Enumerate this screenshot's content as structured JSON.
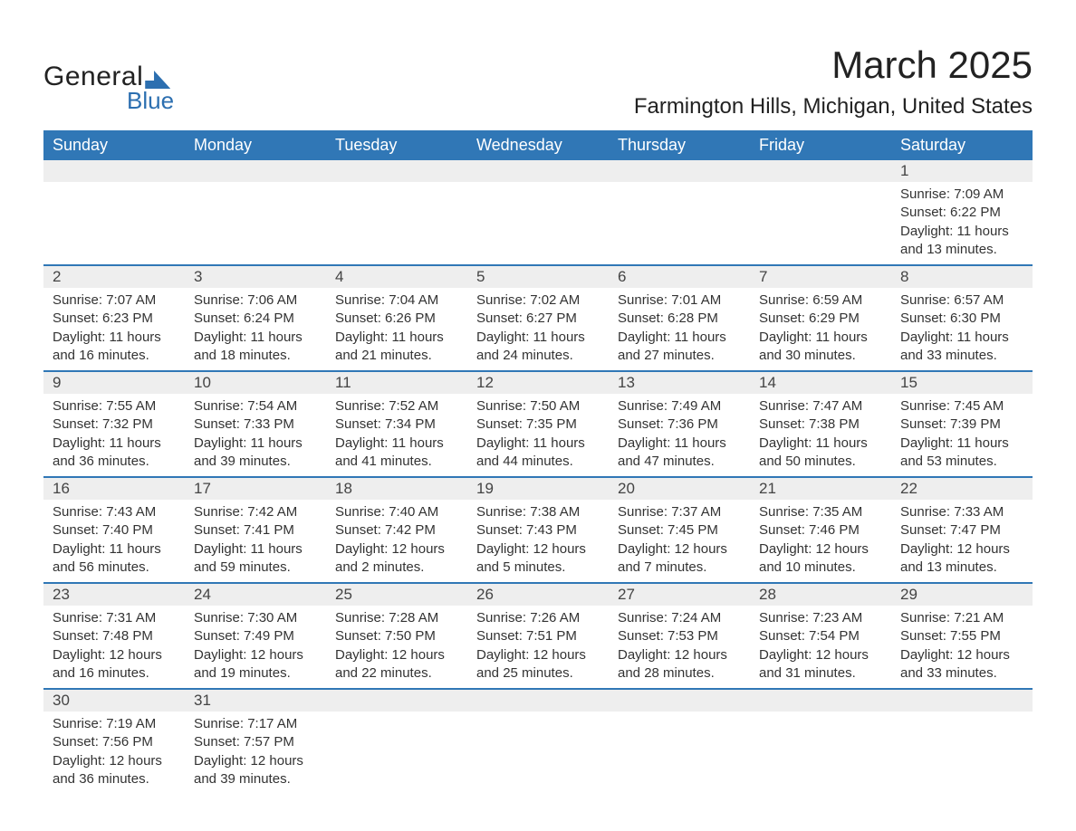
{
  "brand": {
    "word1": "General",
    "word2": "Blue",
    "accent_color": "#2c6fb0"
  },
  "title": "March 2025",
  "location": "Farmington Hills, Michigan, United States",
  "header_bg": "#3077b6",
  "header_fg": "#ffffff",
  "daynum_bg": "#eeeeee",
  "row_divider_color": "#3077b6",
  "days_of_week": [
    "Sunday",
    "Monday",
    "Tuesday",
    "Wednesday",
    "Thursday",
    "Friday",
    "Saturday"
  ],
  "weeks": [
    [
      null,
      null,
      null,
      null,
      null,
      null,
      {
        "n": "1",
        "sunrise": "Sunrise: 7:09 AM",
        "sunset": "Sunset: 6:22 PM",
        "daylight": "Daylight: 11 hours and 13 minutes."
      }
    ],
    [
      {
        "n": "2",
        "sunrise": "Sunrise: 7:07 AM",
        "sunset": "Sunset: 6:23 PM",
        "daylight": "Daylight: 11 hours and 16 minutes."
      },
      {
        "n": "3",
        "sunrise": "Sunrise: 7:06 AM",
        "sunset": "Sunset: 6:24 PM",
        "daylight": "Daylight: 11 hours and 18 minutes."
      },
      {
        "n": "4",
        "sunrise": "Sunrise: 7:04 AM",
        "sunset": "Sunset: 6:26 PM",
        "daylight": "Daylight: 11 hours and 21 minutes."
      },
      {
        "n": "5",
        "sunrise": "Sunrise: 7:02 AM",
        "sunset": "Sunset: 6:27 PM",
        "daylight": "Daylight: 11 hours and 24 minutes."
      },
      {
        "n": "6",
        "sunrise": "Sunrise: 7:01 AM",
        "sunset": "Sunset: 6:28 PM",
        "daylight": "Daylight: 11 hours and 27 minutes."
      },
      {
        "n": "7",
        "sunrise": "Sunrise: 6:59 AM",
        "sunset": "Sunset: 6:29 PM",
        "daylight": "Daylight: 11 hours and 30 minutes."
      },
      {
        "n": "8",
        "sunrise": "Sunrise: 6:57 AM",
        "sunset": "Sunset: 6:30 PM",
        "daylight": "Daylight: 11 hours and 33 minutes."
      }
    ],
    [
      {
        "n": "9",
        "sunrise": "Sunrise: 7:55 AM",
        "sunset": "Sunset: 7:32 PM",
        "daylight": "Daylight: 11 hours and 36 minutes."
      },
      {
        "n": "10",
        "sunrise": "Sunrise: 7:54 AM",
        "sunset": "Sunset: 7:33 PM",
        "daylight": "Daylight: 11 hours and 39 minutes."
      },
      {
        "n": "11",
        "sunrise": "Sunrise: 7:52 AM",
        "sunset": "Sunset: 7:34 PM",
        "daylight": "Daylight: 11 hours and 41 minutes."
      },
      {
        "n": "12",
        "sunrise": "Sunrise: 7:50 AM",
        "sunset": "Sunset: 7:35 PM",
        "daylight": "Daylight: 11 hours and 44 minutes."
      },
      {
        "n": "13",
        "sunrise": "Sunrise: 7:49 AM",
        "sunset": "Sunset: 7:36 PM",
        "daylight": "Daylight: 11 hours and 47 minutes."
      },
      {
        "n": "14",
        "sunrise": "Sunrise: 7:47 AM",
        "sunset": "Sunset: 7:38 PM",
        "daylight": "Daylight: 11 hours and 50 minutes."
      },
      {
        "n": "15",
        "sunrise": "Sunrise: 7:45 AM",
        "sunset": "Sunset: 7:39 PM",
        "daylight": "Daylight: 11 hours and 53 minutes."
      }
    ],
    [
      {
        "n": "16",
        "sunrise": "Sunrise: 7:43 AM",
        "sunset": "Sunset: 7:40 PM",
        "daylight": "Daylight: 11 hours and 56 minutes."
      },
      {
        "n": "17",
        "sunrise": "Sunrise: 7:42 AM",
        "sunset": "Sunset: 7:41 PM",
        "daylight": "Daylight: 11 hours and 59 minutes."
      },
      {
        "n": "18",
        "sunrise": "Sunrise: 7:40 AM",
        "sunset": "Sunset: 7:42 PM",
        "daylight": "Daylight: 12 hours and 2 minutes."
      },
      {
        "n": "19",
        "sunrise": "Sunrise: 7:38 AM",
        "sunset": "Sunset: 7:43 PM",
        "daylight": "Daylight: 12 hours and 5 minutes."
      },
      {
        "n": "20",
        "sunrise": "Sunrise: 7:37 AM",
        "sunset": "Sunset: 7:45 PM",
        "daylight": "Daylight: 12 hours and 7 minutes."
      },
      {
        "n": "21",
        "sunrise": "Sunrise: 7:35 AM",
        "sunset": "Sunset: 7:46 PM",
        "daylight": "Daylight: 12 hours and 10 minutes."
      },
      {
        "n": "22",
        "sunrise": "Sunrise: 7:33 AM",
        "sunset": "Sunset: 7:47 PM",
        "daylight": "Daylight: 12 hours and 13 minutes."
      }
    ],
    [
      {
        "n": "23",
        "sunrise": "Sunrise: 7:31 AM",
        "sunset": "Sunset: 7:48 PM",
        "daylight": "Daylight: 12 hours and 16 minutes."
      },
      {
        "n": "24",
        "sunrise": "Sunrise: 7:30 AM",
        "sunset": "Sunset: 7:49 PM",
        "daylight": "Daylight: 12 hours and 19 minutes."
      },
      {
        "n": "25",
        "sunrise": "Sunrise: 7:28 AM",
        "sunset": "Sunset: 7:50 PM",
        "daylight": "Daylight: 12 hours and 22 minutes."
      },
      {
        "n": "26",
        "sunrise": "Sunrise: 7:26 AM",
        "sunset": "Sunset: 7:51 PM",
        "daylight": "Daylight: 12 hours and 25 minutes."
      },
      {
        "n": "27",
        "sunrise": "Sunrise: 7:24 AM",
        "sunset": "Sunset: 7:53 PM",
        "daylight": "Daylight: 12 hours and 28 minutes."
      },
      {
        "n": "28",
        "sunrise": "Sunrise: 7:23 AM",
        "sunset": "Sunset: 7:54 PM",
        "daylight": "Daylight: 12 hours and 31 minutes."
      },
      {
        "n": "29",
        "sunrise": "Sunrise: 7:21 AM",
        "sunset": "Sunset: 7:55 PM",
        "daylight": "Daylight: 12 hours and 33 minutes."
      }
    ],
    [
      {
        "n": "30",
        "sunrise": "Sunrise: 7:19 AM",
        "sunset": "Sunset: 7:56 PM",
        "daylight": "Daylight: 12 hours and 36 minutes."
      },
      {
        "n": "31",
        "sunrise": "Sunrise: 7:17 AM",
        "sunset": "Sunset: 7:57 PM",
        "daylight": "Daylight: 12 hours and 39 minutes."
      },
      null,
      null,
      null,
      null,
      null
    ]
  ]
}
